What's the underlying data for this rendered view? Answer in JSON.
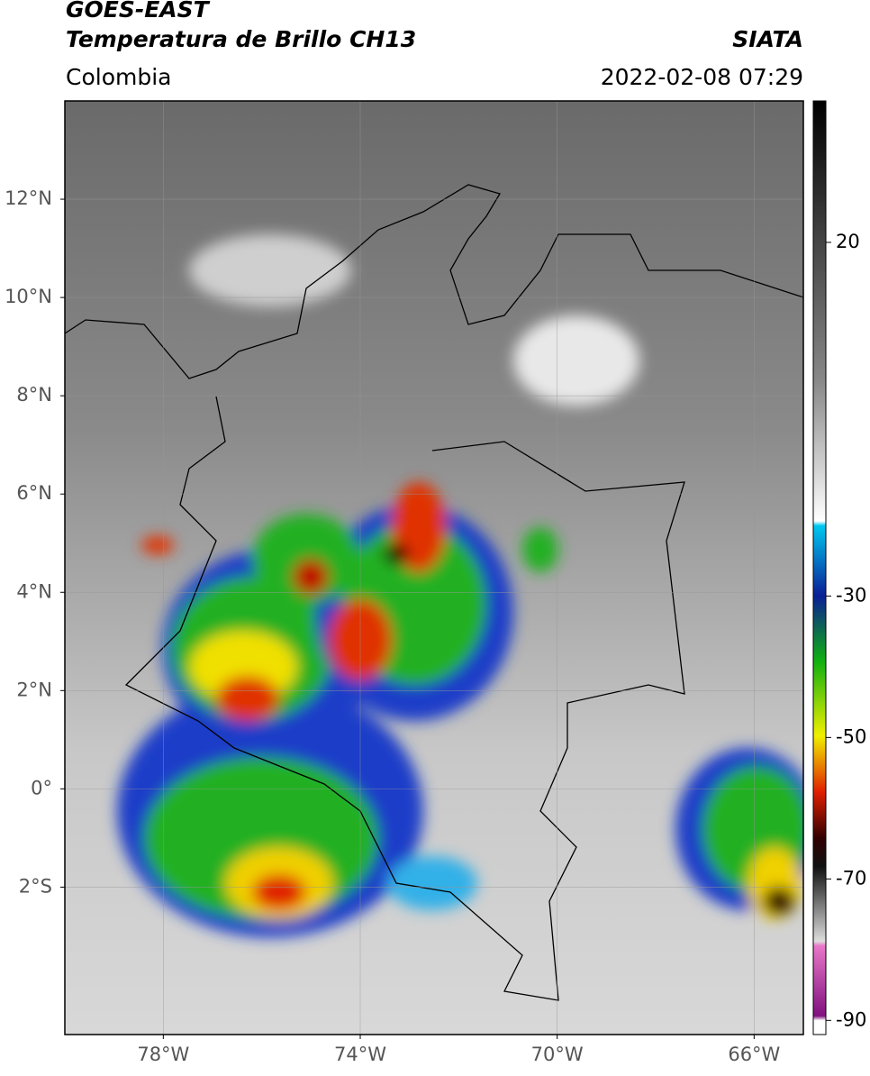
{
  "header": {
    "title": "GOES-EAST",
    "subtitle": "Temperatura de Brillo CH13",
    "source": "SIATA",
    "region": "Colombia",
    "datetime": "2022-02-08 07:29"
  },
  "map": {
    "xlim": [
      -80,
      -65
    ],
    "ylim": [
      -5,
      14
    ],
    "xticks": [
      {
        "value": -78,
        "label": "78°W"
      },
      {
        "value": -74,
        "label": "74°W"
      },
      {
        "value": -70,
        "label": "70°W"
      },
      {
        "value": -66,
        "label": "66°W"
      }
    ],
    "yticks": [
      {
        "value": 12,
        "label": "12°N"
      },
      {
        "value": 10,
        "label": "10°N"
      },
      {
        "value": 8,
        "label": "8°N"
      },
      {
        "value": 6,
        "label": "6°N"
      },
      {
        "value": 4,
        "label": "4°N"
      },
      {
        "value": 2,
        "label": "2°N"
      },
      {
        "value": 0,
        "label": "0°"
      },
      {
        "value": -2,
        "label": "2°S"
      }
    ],
    "grid": true
  },
  "colorbar": {
    "lim": [
      -92,
      40
    ],
    "ticks": [
      20,
      -30,
      -50,
      -70,
      -90
    ]
  }
}
